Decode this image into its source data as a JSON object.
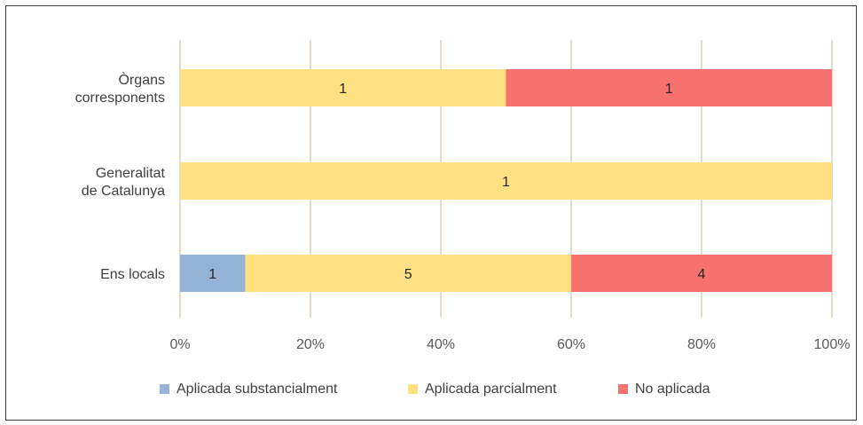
{
  "chart_data": {
    "type": "bar",
    "orientation": "horizontal",
    "stacked": "percent",
    "categories": [
      "Òrgans\ncorresponents",
      "Generalitat\nde Catalunya",
      "Ens locals"
    ],
    "series": [
      {
        "name": "Aplicada substancialment",
        "color": "#95B3D7",
        "values": [
          0,
          0,
          1
        ]
      },
      {
        "name": "Aplicada parcialment",
        "color": "#FFE082",
        "values": [
          1,
          1,
          5
        ]
      },
      {
        "name": "No aplicada",
        "color": "#F7716F",
        "values": [
          1,
          0,
          4
        ]
      }
    ],
    "x_ticks": [
      "0%",
      "20%",
      "40%",
      "60%",
      "80%",
      "100%"
    ],
    "xlim": [
      0,
      100
    ],
    "grid": "vertical",
    "grid_color": "#C9BC8C",
    "legend": "bottom"
  }
}
